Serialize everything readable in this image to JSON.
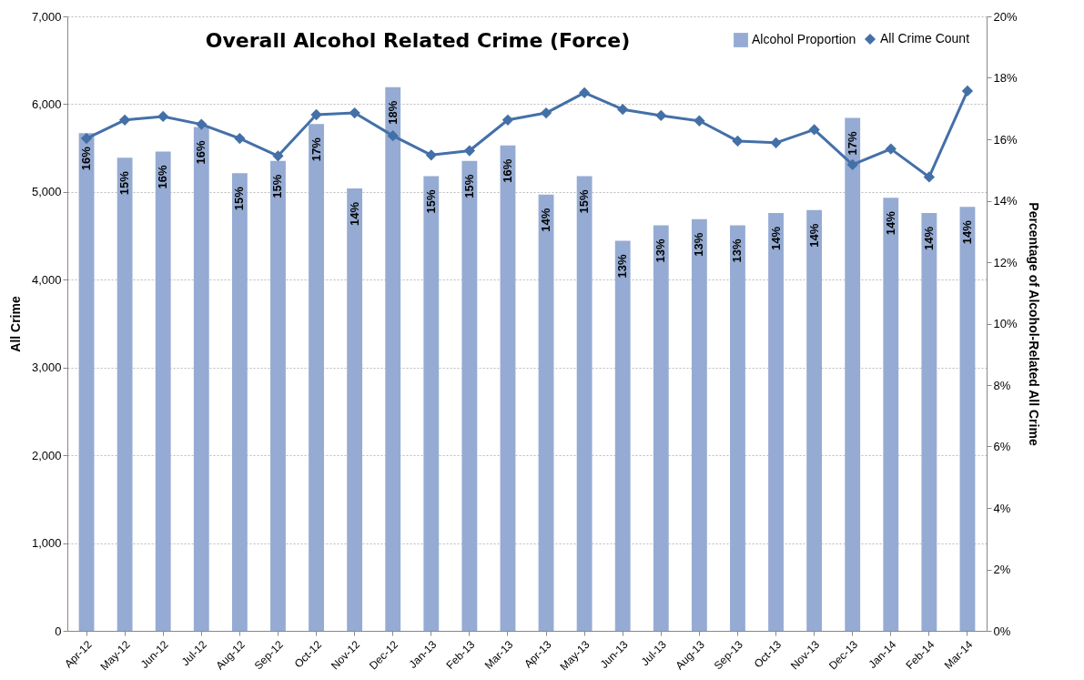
{
  "chart_data": {
    "type": "bar",
    "title": "Overall Alcohol Related Crime (Force)",
    "ylabel": "All Crime",
    "y2label": "Percentage of Alcohol-Related  All Crime",
    "categories": [
      "Apr-12",
      "May-12",
      "Jun-12",
      "Jul-12",
      "Aug-12",
      "Sep-12",
      "Oct-12",
      "Nov-12",
      "Dec-12",
      "Jan-13",
      "Feb-13",
      "Mar-13",
      "Apr-13",
      "May-13",
      "Jun-13",
      "Jul-13",
      "Aug-13",
      "Sep-13",
      "Oct-13",
      "Nov-13",
      "Dec-13",
      "Jan-14",
      "Feb-14",
      "Mar-14"
    ],
    "series": [
      {
        "name": "Alcohol Proportion",
        "axis": "y2",
        "color": "#95abd3",
        "values": [
          16.2,
          15.4,
          15.6,
          16.4,
          14.9,
          15.3,
          16.5,
          14.4,
          17.7,
          14.8,
          15.3,
          15.8,
          14.2,
          14.8,
          12.7,
          13.2,
          13.4,
          13.2,
          13.6,
          13.7,
          16.7,
          14.1,
          13.6,
          13.8
        ],
        "value_labels": [
          "16%",
          "15%",
          "16%",
          "16%",
          "15%",
          "15%",
          "17%",
          "14%",
          "18%",
          "15%",
          "15%",
          "16%",
          "14%",
          "15%",
          "13%",
          "13%",
          "13%",
          "13%",
          "14%",
          "14%",
          "17%",
          "14%",
          "14%",
          "14%"
        ]
      },
      {
        "name": "All Crime Count",
        "type": "line",
        "color": "#4470a8",
        "marker": "diamond",
        "values": [
          5610,
          5820,
          5860,
          5770,
          5610,
          5410,
          5880,
          5900,
          5640,
          5420,
          5470,
          5820,
          5900,
          6130,
          5940,
          5870,
          5810,
          5580,
          5560,
          5710,
          5310,
          5490,
          5170,
          6150
        ]
      }
    ],
    "ylim": [
      0,
      7000
    ],
    "yticks": [
      {
        "value": 0,
        "label": "0"
      },
      {
        "value": 1000,
        "label": "1,000"
      },
      {
        "value": 2000,
        "label": "2,000"
      },
      {
        "value": 3000,
        "label": "3,000"
      },
      {
        "value": 4000,
        "label": "4,000"
      },
      {
        "value": 5000,
        "label": "5,000"
      },
      {
        "value": 6000,
        "label": "6,000"
      },
      {
        "value": 7000,
        "label": "7,000"
      }
    ],
    "y2lim": [
      0,
      20
    ],
    "y2ticks": [
      {
        "value": 0,
        "label": "0%"
      },
      {
        "value": 2,
        "label": "2%"
      },
      {
        "value": 4,
        "label": "4%"
      },
      {
        "value": 6,
        "label": "6%"
      },
      {
        "value": 8,
        "label": "8%"
      },
      {
        "value": 10,
        "label": "10%"
      },
      {
        "value": 12,
        "label": "12%"
      },
      {
        "value": 14,
        "label": "14%"
      },
      {
        "value": 16,
        "label": "16%"
      },
      {
        "value": 18,
        "label": "18%"
      },
      {
        "value": 20,
        "label": "20%"
      }
    ],
    "grid": "y",
    "legend": "top right"
  }
}
